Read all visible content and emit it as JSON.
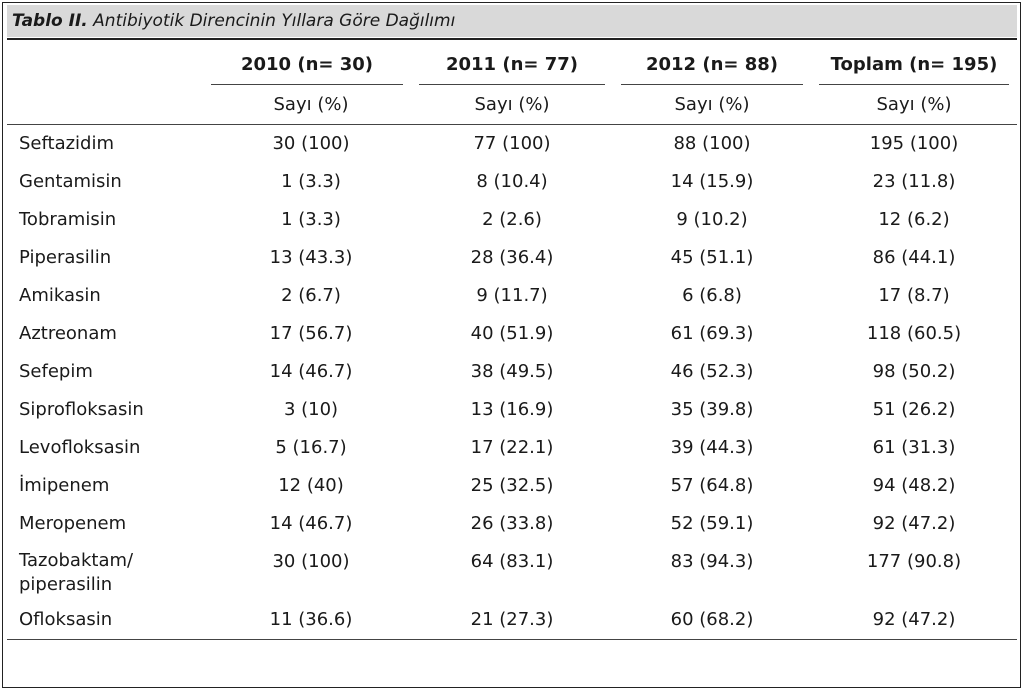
{
  "caption": {
    "label": "Tablo II.",
    "text": "Antibiyotik Direncinin Yıllara Göre Dağılımı"
  },
  "columns": [
    {
      "year": "2010 (n= 30)",
      "unit": "Sayı (%)"
    },
    {
      "year": "2011 (n= 77)",
      "unit": "Sayı (%)"
    },
    {
      "year": "2012 (n= 88)",
      "unit": "Sayı (%)"
    },
    {
      "year": "Toplam (n= 195)",
      "unit": "Sayı (%)"
    }
  ],
  "rows": [
    {
      "name": "Seftazidim",
      "values": [
        "30 (100)",
        "77 (100)",
        "88 (100)",
        "195 (100)"
      ]
    },
    {
      "name": "Gentamisin",
      "values": [
        "1 (3.3)",
        "8 (10.4)",
        "14 (15.9)",
        "23 (11.8)"
      ]
    },
    {
      "name": "Tobramisin",
      "values": [
        "1 (3.3)",
        "2 (2.6)",
        "9 (10.2)",
        "12 (6.2)"
      ]
    },
    {
      "name": "Piperasilin",
      "values": [
        "13 (43.3)",
        "28 (36.4)",
        "45 (51.1)",
        "86 (44.1)"
      ]
    },
    {
      "name": "Amikasin",
      "values": [
        "2 (6.7)",
        "9 (11.7)",
        "6 (6.8)",
        "17 (8.7)"
      ]
    },
    {
      "name": "Aztreonam",
      "values": [
        "17 (56.7)",
        "40 (51.9)",
        "61 (69.3)",
        "118 (60.5)"
      ]
    },
    {
      "name": "Sefepim",
      "values": [
        "14 (46.7)",
        "38 (49.5)",
        "46 (52.3)",
        "98 (50.2)"
      ]
    },
    {
      "name": "Siprofloksasin",
      "values": [
        "3 (10)",
        "13 (16.9)",
        "35 (39.8)",
        "51 (26.2)"
      ]
    },
    {
      "name": "Levofloksasin",
      "values": [
        "5 (16.7)",
        "17 (22.1)",
        "39 (44.3)",
        "61 (31.3)"
      ]
    },
    {
      "name": "İmipenem",
      "values": [
        "12 (40)",
        "25 (32.5)",
        "57 (64.8)",
        "94 (48.2)"
      ]
    },
    {
      "name": "Meropenem",
      "values": [
        "14 (46.7)",
        "26 (33.8)",
        "52 (59.1)",
        "92 (47.2)"
      ]
    },
    {
      "name_line1": "Tazobaktam/",
      "name_line2": "piperasilin",
      "values": [
        "30 (100)",
        "64 (83.1)",
        "83 (94.3)",
        "177 (90.8)"
      ]
    },
    {
      "name": "Ofloksasin",
      "values": [
        "11 (36.6)",
        "21 (27.3)",
        "60 (68.2)",
        "92 (47.2)"
      ]
    }
  ]
}
